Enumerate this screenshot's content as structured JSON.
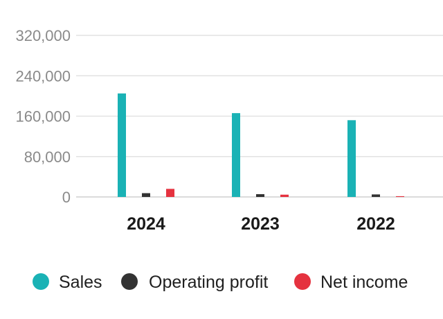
{
  "chart_data": {
    "type": "bar",
    "categories": [
      "2024",
      "2023",
      "2022"
    ],
    "series": [
      {
        "name": "Sales",
        "color": "#1ab2b5",
        "values": [
          205000,
          166000,
          152000
        ]
      },
      {
        "name": "Operating profit",
        "color": "#333333",
        "values": [
          7500,
          5500,
          5000
        ]
      },
      {
        "name": "Net income",
        "color": "#e5323f",
        "values": [
          16000,
          4500,
          1500
        ]
      }
    ],
    "y_ticks": [
      "0",
      "80,000",
      "160,000",
      "240,000",
      "320,000"
    ],
    "y_tick_values": [
      0,
      80000,
      160000,
      240000,
      320000
    ],
    "ylim": [
      0,
      320000
    ],
    "grid": true,
    "legend_position": "bottom",
    "title": "",
    "xlabel": "",
    "ylabel": ""
  }
}
